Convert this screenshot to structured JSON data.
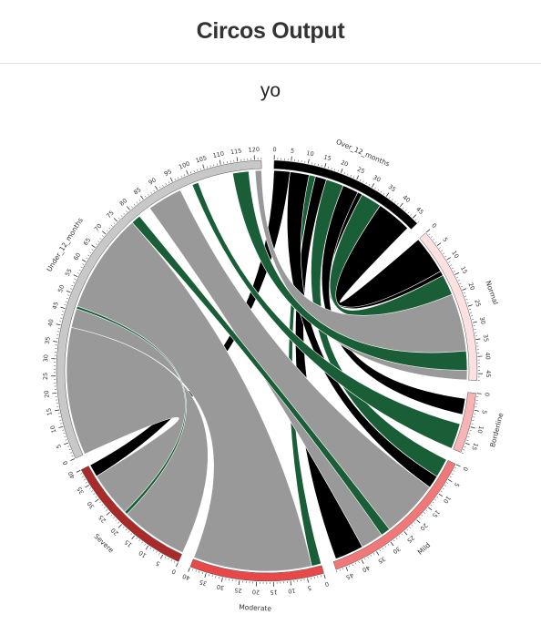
{
  "header": {
    "title": "Circos Output"
  },
  "chart_title": "yo",
  "chart_data": {
    "type": "chord",
    "segments": [
      {
        "name": "Over_12_months",
        "size": 47,
        "color": "#000000"
      },
      {
        "name": "Normal",
        "size": 47,
        "color": "#fde0e0"
      },
      {
        "name": "Borderline",
        "size": 18,
        "color": "#f6b4b4"
      },
      {
        "name": "Mild",
        "size": 48,
        "color": "#f07878"
      },
      {
        "name": "Moderate",
        "size": 40,
        "color": "#e84848"
      },
      {
        "name": "Severe",
        "size": 40,
        "color": "#a82a2a"
      },
      {
        "name": "Under_12_months",
        "size": 122,
        "color": "#c8c8c8"
      }
    ],
    "links": [
      {
        "source": "Over_12_months",
        "source_start": 35,
        "source_end": 46,
        "target": "Normal",
        "target_start": 0,
        "target_end": 12
      },
      {
        "source": "Over_12_months",
        "source_start": 27,
        "source_end": 28.5,
        "target": "Normal",
        "target_start": 12,
        "target_end": 13.5
      },
      {
        "source": "Over_12_months",
        "source_start": 28.5,
        "source_end": 35,
        "target": "Normal",
        "target_start": 13.5,
        "target_end": 20
      },
      {
        "source": "Over_12_months",
        "source_start": 22,
        "source_end": 27,
        "target": "Borderline",
        "target_start": 2,
        "target_end": 7
      },
      {
        "source": "Over_12_months",
        "source_start": 16.5,
        "source_end": 22,
        "target": "Mild",
        "target_start": 0,
        "target_end": 6
      },
      {
        "source": "Over_12_months",
        "source_start": 13,
        "source_end": 16.5,
        "target": "Mild",
        "target_start": 38,
        "target_end": 47
      },
      {
        "source": "Over_12_months",
        "source_start": 11,
        "source_end": 13,
        "target": "Moderate",
        "target_start": 0,
        "target_end": 3
      },
      {
        "source": "Over_12_months",
        "source_start": 5,
        "source_end": 11,
        "target": "Mild",
        "target_start": 6,
        "target_end": 10
      },
      {
        "source": "Over_12_months",
        "source_start": 0,
        "source_end": 5,
        "target": "Severe",
        "target_start": 36,
        "target_end": 40
      },
      {
        "source": "Under_12_months",
        "source_start": 120,
        "source_end": 122,
        "target": "Normal",
        "target_start": 20,
        "target_end": 47
      },
      {
        "source": "Under_12_months",
        "source_start": 113,
        "source_end": 118,
        "target": "Normal",
        "target_start": 38,
        "target_end": 44
      },
      {
        "source": "Under_12_months",
        "source_start": 100,
        "source_end": 102,
        "target": "Borderline",
        "target_start": 10,
        "target_end": 18
      },
      {
        "source": "Under_12_months",
        "source_start": 85,
        "source_end": 96,
        "target": "Mild",
        "target_start": 10,
        "target_end": 38
      },
      {
        "source": "Under_12_months",
        "source_start": 78,
        "source_end": 81,
        "target": "Mild",
        "target_start": 28,
        "target_end": 31
      },
      {
        "source": "Under_12_months",
        "source_start": 40,
        "source_end": 78,
        "target": "Moderate",
        "target_start": 3,
        "target_end": 40
      },
      {
        "source": "Under_12_months",
        "source_start": 0,
        "source_end": 40,
        "target": "Severe",
        "target_start": 0,
        "target_end": 36
      },
      {
        "source": "Under_12_months",
        "source_start": 46,
        "source_end": 46.8,
        "target": "Severe",
        "target_start": 21,
        "target_end": 22
      }
    ],
    "highlight_color": "#1a5e38",
    "highlight_links": [
      2,
      4,
      6,
      10,
      11,
      13,
      16
    ]
  }
}
